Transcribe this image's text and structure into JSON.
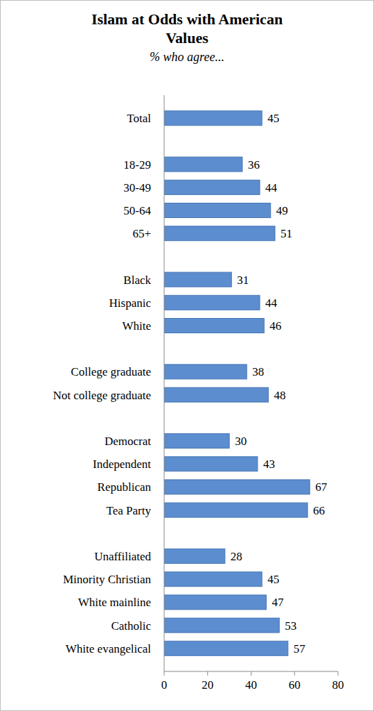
{
  "chart_data": {
    "type": "bar",
    "orientation": "horizontal",
    "title": "Islam at Odds with American Values",
    "subtitle": "% who agree...",
    "categories": [
      "Total",
      null,
      "18-29",
      "30-49",
      "50-64",
      "65+",
      null,
      "Black",
      "Hispanic",
      "White",
      null,
      "College graduate",
      "Not college graduate",
      null,
      "Democrat",
      "Independent",
      "Republican",
      "Tea Party",
      null,
      "Unaffiliated",
      "Minority Christian",
      "White mainline",
      "Catholic",
      "White evangelical"
    ],
    "values": [
      45,
      null,
      36,
      44,
      49,
      51,
      null,
      31,
      44,
      46,
      null,
      38,
      48,
      null,
      30,
      43,
      67,
      66,
      null,
      28,
      45,
      47,
      53,
      57
    ],
    "color": "#5b8dcf",
    "xlim": [
      0,
      80
    ],
    "xticks": [
      0,
      20,
      40,
      60,
      80
    ],
    "grid": false,
    "data_labels": true
  }
}
